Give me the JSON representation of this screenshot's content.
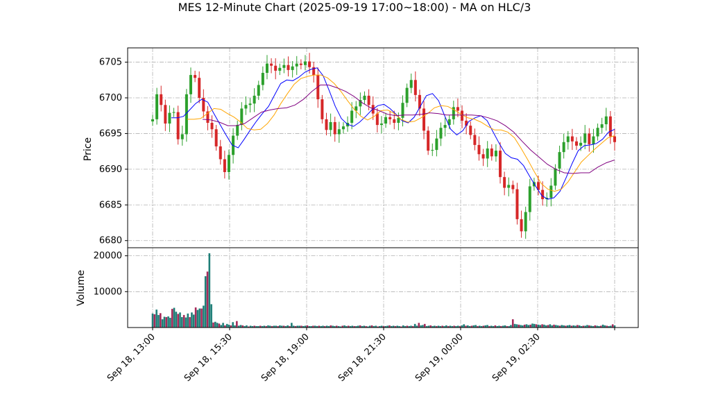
{
  "chart_data": [
    {
      "type": "candlestick",
      "title": "MES 12-Minute Chart (2025-09-19 17:00~18:00) - MA on HLC/3",
      "ylabel": "Price",
      "ylim": [
        6679,
        6707
      ],
      "yticks": [
        6680,
        6685,
        6690,
        6695,
        6700,
        6705
      ],
      "x_tick_labels": [
        "Sep 18, 13:00",
        "Sep 18, 15:30",
        "Sep 18, 19:00",
        "Sep 18, 21:30",
        "Sep 19, 00:00",
        "Sep 19, 02:30",
        ""
      ],
      "grid": true,
      "colors": {
        "up": "#2ca02c",
        "down": "#d62728",
        "ma_fast": "#0000ff",
        "ma_mid": "#ffa500",
        "ma_slow": "#800080"
      },
      "series": [
        {
          "key": "close",
          "values": [
            6697.0,
            6700.5,
            6699.0,
            6696.4,
            6697.9,
            6698.0,
            6694.2,
            6694.9,
            6700.5,
            6703.2,
            6702.8,
            6700.0,
            6698.1,
            6696.5,
            6695.6,
            6693.2,
            6691.4,
            6689.6,
            6692.0,
            6694.7,
            6696.2,
            6698.5,
            6699.0,
            6699.2,
            6700.3,
            6701.8,
            6703.5,
            6704.8,
            6704.5,
            6703.8,
            6704.2,
            6704.6,
            6703.9,
            6704.4,
            6704.8,
            6704.6,
            6705.1,
            6704.3,
            6703.2,
            6699.8,
            6697.0,
            6695.5,
            6696.6,
            6694.9,
            6695.6,
            6696.0,
            6696.5,
            6698.2,
            6698.8,
            6699.7,
            6700.3,
            6699.0,
            6697.8,
            6696.2,
            6696.4,
            6697.3,
            6697.0,
            6696.5,
            6697.2,
            6699.3,
            6701.4,
            6702.5,
            6700.4,
            6698.5,
            6695.4,
            6692.6,
            6692.7,
            6694.3,
            6695.8,
            6696.2,
            6697.0,
            6698.7,
            6698.2,
            6696.8,
            6696.1,
            6694.8,
            6693.4,
            6692.1,
            6691.5,
            6692.9,
            6691.8,
            6692.6,
            6688.9,
            6687.4,
            6687.8,
            6687.2,
            6683.0,
            6681.3,
            6684.0,
            6687.6,
            6688.2,
            6687.1,
            6685.8,
            6686.0,
            6687.7,
            6690.1,
            6692.4,
            6693.8,
            6694.6,
            6693.9,
            6693.3,
            6693.7,
            6695.0,
            6693.5,
            6694.6,
            6695.8,
            6696.3,
            6697.4,
            6694.6,
            6693.8
          ]
        },
        {
          "key": "ma_fast",
          "name": "",
          "values": [
            6697.2,
            6697.2,
            6697.4,
            6698.3,
            6699.2,
            6699.8,
            6699.4,
            6697.8,
            6696.3,
            6694.8,
            6693.4,
            6693.0,
            6694.2,
            6695.5,
            6696.7,
            6697.8,
            6698.8,
            6700.4,
            6702.0,
            6702.5,
            6702.4,
            6702.9,
            6703.6,
            6704.0,
            6704.2,
            6703.1,
            6701.0,
            6698.8,
            6697.1,
            6696.3,
            6696.0,
            6696.6,
            6697.4,
            6698.3,
            6698.9,
            6699.1,
            6698.5,
            6697.7,
            6696.8,
            6696.5,
            6697.3,
            6698.8,
            6700.3,
            6700.6,
            6699.6,
            6697.5,
            6695.6,
            6694.8,
            6695.4,
            6696.7,
            6697.2,
            6697.5,
            6696.8,
            6695.2,
            6693.6,
            6692.2,
            6691.6,
            6691.4,
            6690.5,
            6689.0,
            6687.6,
            6686.3,
            6685.8,
            6686.0,
            6686.9,
            6688.8,
            6690.8,
            6692.6,
            6693.3,
            6693.4,
            6693.6,
            6694.2,
            6695.2,
            6695.6
          ]
        },
        {
          "key": "ma_mid",
          "name": "",
          "values": [
            6697.0,
            6697.0,
            6697.1,
            6697.8,
            6698.5,
            6698.4,
            6697.8,
            6697.3,
            6696.6,
            6695.7,
            6695.5,
            6695.6,
            6696.4,
            6697.6,
            6699.2,
            6700.6,
            6701.9,
            6702.7,
            6703.0,
            6703.2,
            6703.2,
            6702.8,
            6702.0,
            6700.9,
            6699.6,
            6698.4,
            6697.4,
            6696.9,
            6697.4,
            6698.2,
            6698.3,
            6697.8,
            6697.0,
            6696.6,
            6696.7,
            6697.2,
            6697.8,
            6698.6,
            6698.9,
            6698.8,
            6698.3,
            6697.7,
            6697.2,
            6697.0,
            6696.6,
            6696.0,
            6695.5,
            6695.5,
            6695.2,
            6694.4,
            6692.9,
            6691.3,
            6689.6,
            6688.0,
            6687.2,
            6686.9,
            6687.2,
            6688.2,
            6689.6,
            6691.0,
            6691.9,
            6692.8,
            6693.6,
            6694.4,
            6694.7
          ]
        },
        {
          "key": "ma_slow",
          "name": "",
          "values": [
            6697.0,
            6696.9,
            6696.6,
            6696.1,
            6696.1,
            6696.4,
            6697.2,
            6698.0,
            6698.3,
            6698.5,
            6698.6,
            6699.0,
            6699.8,
            6700.9,
            6701.8,
            6701.8,
            6701.4,
            6700.9,
            6700.2,
            6699.3,
            6698.6,
            6698.2,
            6697.7,
            6697.5,
            6697.6,
            6697.6,
            6697.7,
            6697.9,
            6697.8,
            6697.6,
            6697.6,
            6697.6,
            6697.6,
            6697.5,
            6697.2,
            6696.8,
            6696.1,
            6695.2,
            6693.9,
            6692.7,
            6691.7,
            6690.7,
            6690.0,
            6689.5,
            6689.4,
            6689.5,
            6689.5,
            6690.3,
            6690.9,
            6691.3
          ]
        }
      ]
    },
    {
      "type": "bar",
      "ylabel": "Volume",
      "ylim": [
        0,
        20700
      ],
      "yticks": [
        10000,
        20000
      ],
      "grid": true,
      "colors": {
        "up": "#1f7f78",
        "down": "#a52a5a"
      },
      "values": [
        3900,
        3700,
        5000,
        3500,
        4000,
        2300,
        3000,
        2900,
        3100,
        2700,
        5200,
        5500,
        4400,
        3800,
        4200,
        2900,
        3500,
        2800,
        3900,
        2900,
        4200,
        3600,
        5600,
        4900,
        5300,
        5300,
        6100,
        14300,
        15600,
        20700,
        6500,
        1400,
        1600,
        1300,
        1100,
        700,
        1300,
        600,
        1000,
        800,
        600,
        1500,
        600,
        1800,
        500,
        700,
        600,
        400,
        600,
        300,
        500,
        400,
        500,
        400,
        400,
        500,
        400,
        500,
        400,
        600,
        500,
        400,
        500,
        500,
        400,
        600,
        500,
        500,
        400,
        600,
        400,
        1300,
        500,
        400,
        500,
        500,
        500,
        400,
        500,
        600,
        400,
        400,
        500,
        500,
        400,
        500,
        400,
        500,
        400,
        500,
        400,
        600,
        500,
        400,
        500,
        400,
        300,
        500,
        600,
        400,
        500,
        400,
        500,
        400,
        400,
        500,
        600,
        400,
        500,
        400,
        300,
        500,
        600,
        400,
        500,
        300,
        400,
        500,
        400,
        400,
        500,
        600,
        400,
        500,
        400,
        500,
        400,
        300,
        600,
        400,
        500,
        400,
        500,
        400,
        1000,
        500,
        1300,
        600,
        700,
        1000,
        400,
        500,
        600,
        400,
        500,
        400,
        500,
        400,
        500,
        400,
        600,
        400,
        500,
        400,
        500,
        400,
        500,
        400,
        600,
        900,
        500,
        600,
        400,
        500,
        600,
        700,
        400,
        500,
        400,
        500,
        600,
        700,
        400,
        500,
        400,
        600,
        400,
        500,
        400,
        500,
        600,
        400,
        400,
        700,
        2300,
        1000,
        900,
        800,
        700,
        600,
        800,
        900,
        700,
        800,
        1100,
        1000,
        900,
        800,
        700,
        900,
        800,
        600,
        700,
        900,
        600,
        800,
        700,
        600,
        500,
        700,
        600,
        500,
        600,
        700,
        500,
        600,
        500,
        700,
        600,
        400,
        500,
        500,
        700,
        600,
        500,
        400,
        600,
        500,
        400,
        500,
        800,
        600,
        500,
        400,
        500,
        900,
        600
      ]
    }
  ]
}
